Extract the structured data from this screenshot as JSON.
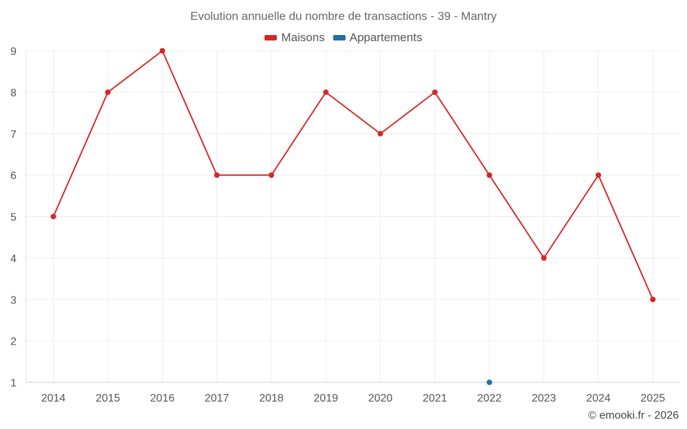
{
  "chart_data": {
    "type": "line",
    "title": "Evolution annuelle du nombre de transactions - 39 - Mantry",
    "x": [
      "2014",
      "2015",
      "2016",
      "2017",
      "2018",
      "2019",
      "2020",
      "2021",
      "2022",
      "2023",
      "2024",
      "2025"
    ],
    "series": [
      {
        "name": "Maisons",
        "color": "#d62728",
        "values": [
          5,
          8,
          9,
          6,
          6,
          8,
          7,
          8,
          6,
          4,
          6,
          3
        ]
      },
      {
        "name": "Appartements",
        "color": "#1f6fa6",
        "values": [
          null,
          null,
          null,
          null,
          null,
          null,
          null,
          null,
          1,
          null,
          null,
          null
        ]
      }
    ],
    "yticks": [
      1,
      2,
      3,
      4,
      5,
      6,
      7,
      8,
      9
    ],
    "ylim": [
      1,
      9
    ],
    "grid": true,
    "legend_position": "top-center"
  },
  "credit": "© emooki.fr - 2026"
}
